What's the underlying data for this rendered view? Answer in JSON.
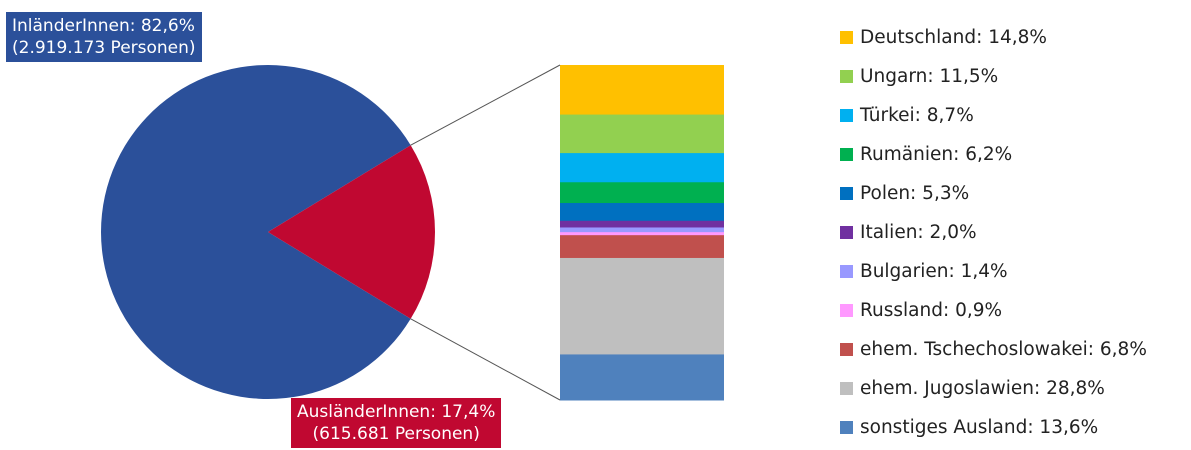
{
  "chart_data": [
    {
      "type": "pie",
      "slices": [
        {
          "label": "InländerInnen",
          "percent": 82.6,
          "persons": 2919173,
          "color": "#2B509A"
        },
        {
          "label": "AusländerInnen",
          "percent": 17.4,
          "persons": 615681,
          "color": "#C00831"
        }
      ],
      "labels": {
        "inland": [
          "InländerInnen: 82,6%",
          "(2.919.173 Personen)"
        ],
        "ausland": [
          "AusländerInnen: 17,4%",
          "(615.681 Personen)"
        ]
      }
    },
    {
      "type": "stacked-bar",
      "breakdown_of": "AusländerInnen",
      "segments": [
        {
          "name": "Deutschland",
          "value": 14.8,
          "color": "#FFC000",
          "legend": "Deutschland: 14,8%"
        },
        {
          "name": "Ungarn",
          "value": 11.5,
          "color": "#92D050",
          "legend": "Ungarn: 11,5%"
        },
        {
          "name": "Türkei",
          "value": 8.7,
          "color": "#00B0F0",
          "legend": "Türkei: 8,7%"
        },
        {
          "name": "Rumänien",
          "value": 6.2,
          "color": "#00B050",
          "legend": "Rumänien: 6,2%"
        },
        {
          "name": "Polen",
          "value": 5.3,
          "color": "#0070C0",
          "legend": "Polen: 5,3%"
        },
        {
          "name": "Italien",
          "value": 2.0,
          "color": "#7030A0",
          "legend": "Italien: 2,0%"
        },
        {
          "name": "Bulgarien",
          "value": 1.4,
          "color": "#9999FF",
          "legend": "Bulgarien: 1,4%"
        },
        {
          "name": "Russland",
          "value": 0.9,
          "color": "#FF99FF",
          "legend": "Russland: 0,9%"
        },
        {
          "name": "ehem. Tschechoslowakei",
          "value": 6.8,
          "color": "#C0504D",
          "legend": "ehem. Tschechoslowakei: 6,8%"
        },
        {
          "name": "ehem. Jugoslawien",
          "value": 28.8,
          "color": "#BFBFBF",
          "legend": "ehem. Jugoslawien: 28,8%"
        },
        {
          "name": "sonstiges Ausland",
          "value": 13.6,
          "color": "#4F81BD",
          "legend": "sonstiges Ausland: 13,6%"
        }
      ]
    }
  ]
}
